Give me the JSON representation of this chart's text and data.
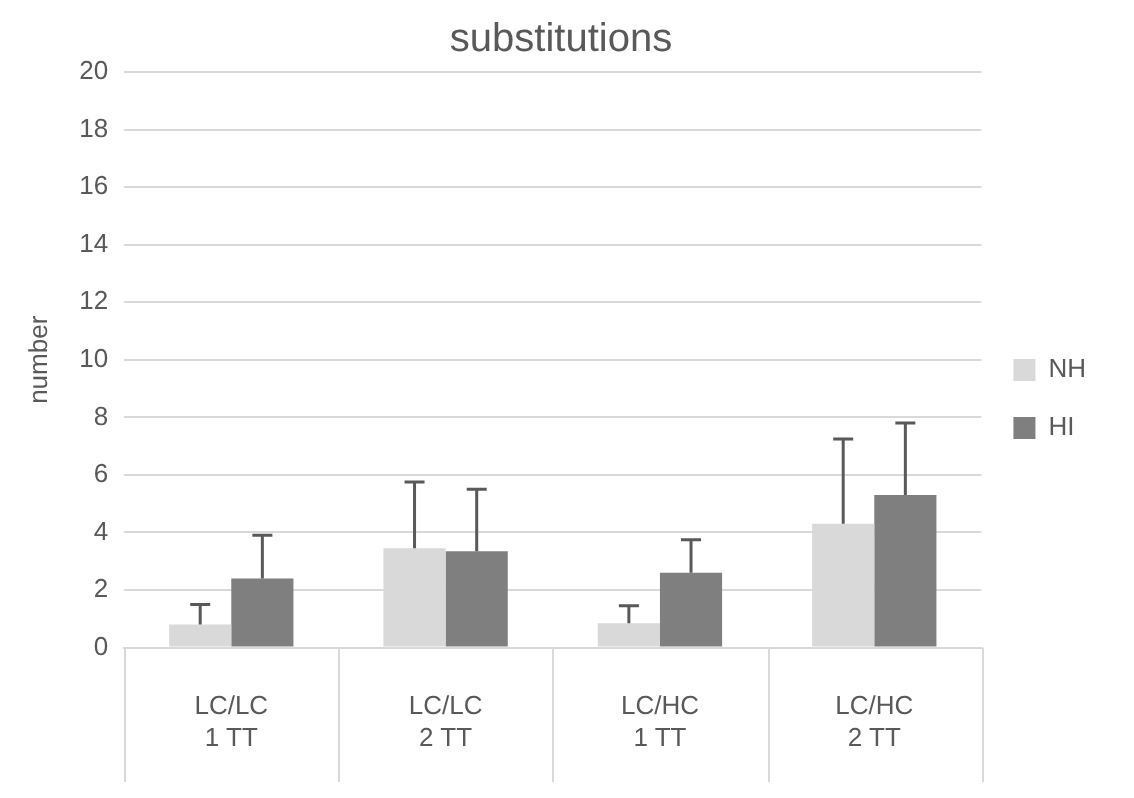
{
  "chart_data": {
    "type": "bar",
    "title": "substitutions",
    "ylabel": "number",
    "categories": [
      "LC/LC\n1 TT",
      "LC/LC\n2 TT",
      "LC/HC\n1 TT",
      "LC/HC\n2 TT"
    ],
    "series": [
      {
        "name": "NH",
        "color": "#d9d9d9",
        "values": [
          0.8,
          3.45,
          0.85,
          4.3
        ],
        "errors": [
          [
            0.8,
            1.5
          ],
          [
            3.45,
            5.75
          ],
          [
            0.85,
            1.45
          ],
          [
            4.3,
            7.25
          ]
        ]
      },
      {
        "name": "HI",
        "color": "#7f7f7f",
        "values": [
          2.4,
          3.35,
          2.6,
          5.3
        ],
        "errors": [
          [
            2.4,
            3.9
          ],
          [
            3.35,
            5.5
          ],
          [
            2.6,
            3.75
          ],
          [
            5.3,
            7.8
          ]
        ]
      }
    ],
    "ylim": [
      0,
      20
    ],
    "yticks": [
      0,
      2,
      4,
      6,
      8,
      10,
      12,
      14,
      16,
      18,
      20
    ],
    "grid": "y",
    "legend": "right"
  }
}
